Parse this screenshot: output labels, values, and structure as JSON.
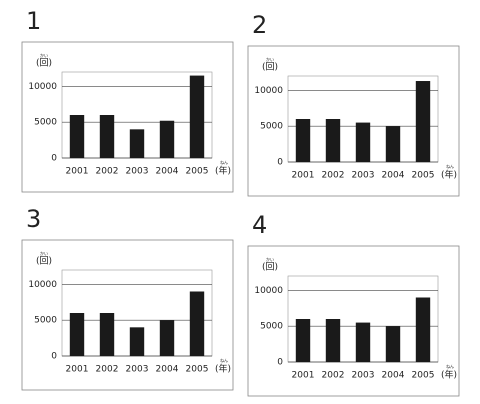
{
  "chart_data": [
    {
      "type": "bar",
      "title": "1",
      "ylabel": "(回)",
      "ylabel_ruby": "かい",
      "xlabel": "(年)",
      "xlabel_ruby": "ねん",
      "categories": [
        "2001",
        "2002",
        "2003",
        "2004",
        "2005"
      ],
      "values": [
        6000,
        6000,
        4000,
        5200,
        11500
      ],
      "color": "#1a1a1a",
      "ylim": [
        0,
        12000
      ],
      "yticks": [
        0,
        5000,
        10000
      ],
      "grid": true
    },
    {
      "type": "bar",
      "title": "2",
      "ylabel": "(回)",
      "ylabel_ruby": "かい",
      "xlabel": "(年)",
      "xlabel_ruby": "ねん",
      "categories": [
        "2001",
        "2002",
        "2003",
        "2004",
        "2005"
      ],
      "values": [
        6000,
        6000,
        5500,
        5000,
        11300
      ],
      "color": "#1a1a1a",
      "ylim": [
        0,
        12000
      ],
      "yticks": [
        0,
        5000,
        10000
      ],
      "grid": true
    },
    {
      "type": "bar",
      "title": "3",
      "ylabel": "(回)",
      "ylabel_ruby": "かい",
      "xlabel": "(年)",
      "xlabel_ruby": "ねん",
      "categories": [
        "2001",
        "2002",
        "2003",
        "2004",
        "2005"
      ],
      "values": [
        6000,
        6000,
        4000,
        5000,
        9000
      ],
      "color": "#1a1a1a",
      "ylim": [
        0,
        12000
      ],
      "yticks": [
        0,
        5000,
        10000
      ],
      "grid": true
    },
    {
      "type": "bar",
      "title": "4",
      "ylabel": "(回)",
      "ylabel_ruby": "かい",
      "xlabel": "(年)",
      "xlabel_ruby": "ねん",
      "categories": [
        "2001",
        "2002",
        "2003",
        "2004",
        "2005"
      ],
      "values": [
        6000,
        6000,
        5500,
        5000,
        9000
      ],
      "color": "#1a1a1a",
      "ylim": [
        0,
        12000
      ],
      "yticks": [
        0,
        5000,
        10000
      ],
      "grid": true
    }
  ]
}
